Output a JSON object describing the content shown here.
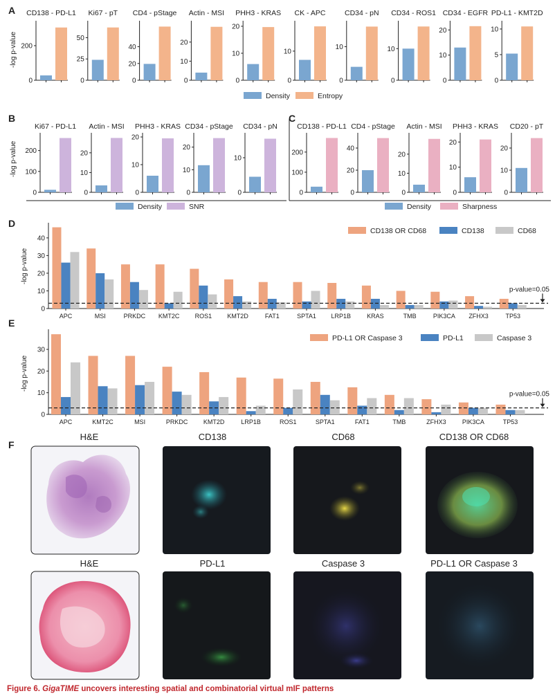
{
  "colors": {
    "density": "#7aa6d0",
    "entropy": "#f3b48b",
    "snr": "#cdb4dc",
    "sharpness": "#eab0c2",
    "or_combo": "#eea47f",
    "marker_a": "#4a83c1",
    "marker_b": "#c8c8c8",
    "axis": "#222222",
    "caption": "#c0272d"
  },
  "panels": {
    "A": "A",
    "B": "B",
    "C": "C",
    "D": "D",
    "E": "E",
    "F": "F"
  },
  "ylabel": "-log p-value",
  "threshold_label": "p-value=0.05",
  "chart_data": [
    {
      "id": "A",
      "type": "bar",
      "ylabel": "-log p-value",
      "series_names": [
        "Density",
        "Entropy"
      ],
      "subplots": [
        {
          "title": "CD138 - PD-L1",
          "ticks": [
            0,
            200
          ],
          "ylim": [
            0,
            320
          ],
          "values": [
            28,
            305
          ]
        },
        {
          "title": "Ki67 - pT",
          "ticks": [
            0,
            25,
            50
          ],
          "ylim": [
            0,
            65
          ],
          "values": [
            24,
            62
          ]
        },
        {
          "title": "CD4 - pStage",
          "ticks": [
            0,
            20,
            40
          ],
          "ylim": [
            0,
            66
          ],
          "values": [
            19.5,
            64
          ]
        },
        {
          "title": "Actin - MSI",
          "ticks": [
            0,
            10,
            20
          ],
          "ylim": [
            0,
            29
          ],
          "values": [
            4,
            28
          ]
        },
        {
          "title": "PHH3 - KRAS",
          "ticks": [
            0,
            10,
            20
          ],
          "ylim": [
            0,
            20.5
          ],
          "values": [
            6,
            19.7
          ]
        },
        {
          "title": "CK - APC",
          "ticks": [
            0,
            10
          ],
          "ylim": [
            0,
            19
          ],
          "values": [
            7,
            18.5
          ]
        },
        {
          "title": "CD34 - pN",
          "ticks": [
            0,
            10
          ],
          "ylim": [
            0,
            16.5
          ],
          "values": [
            4,
            16
          ]
        },
        {
          "title": "CD34 - ROS1",
          "ticks": [
            0,
            10
          ],
          "ylim": [
            0,
            17.5
          ],
          "values": [
            10,
            17
          ]
        },
        {
          "title": "CD34 - EGFR",
          "ticks": [
            0,
            10,
            20
          ],
          "ylim": [
            0,
            22
          ],
          "values": [
            13,
            21.5
          ]
        },
        {
          "title": "PD-L1 - KMT2D",
          "ticks": [
            0,
            5,
            10
          ],
          "ylim": [
            0,
            10.8
          ],
          "values": [
            5.2,
            10.5
          ]
        }
      ]
    },
    {
      "id": "B",
      "type": "bar",
      "ylabel": "-log p-value",
      "series_names": [
        "Density",
        "SNR"
      ],
      "subplots": [
        {
          "title": "Ki67 - PD-L1",
          "ticks": [
            0,
            100,
            200
          ],
          "ylim": [
            0,
            265
          ],
          "values": [
            12,
            260
          ]
        },
        {
          "title": "Actin - MSI",
          "ticks": [
            0,
            10,
            20
          ],
          "ylim": [
            0,
            28
          ],
          "values": [
            3.5,
            27.5
          ]
        },
        {
          "title": "PHH3 - KRAS",
          "ticks": [
            0,
            10,
            20
          ],
          "ylim": [
            0,
            20
          ],
          "values": [
            6,
            19.5
          ]
        },
        {
          "title": "CD34 - pStage",
          "ticks": [
            0,
            10,
            20
          ],
          "ylim": [
            0,
            24.5
          ],
          "values": [
            12,
            24
          ]
        },
        {
          "title": "CD34 - pN",
          "ticks": [
            0,
            10
          ],
          "ylim": [
            0,
            16
          ],
          "values": [
            4.5,
            15.5
          ]
        }
      ]
    },
    {
      "id": "C",
      "type": "bar",
      "ylabel": "",
      "series_names": [
        "Density",
        "Sharpness"
      ],
      "subplots": [
        {
          "title": "CD138 - PD-L1",
          "ticks": [
            0,
            100,
            200
          ],
          "ylim": [
            0,
            275
          ],
          "values": [
            28,
            270
          ]
        },
        {
          "title": "CD4 - pStage",
          "ticks": [
            0,
            20,
            40
          ],
          "ylim": [
            0,
            50
          ],
          "values": [
            20,
            49
          ]
        },
        {
          "title": "Actin - MSI",
          "ticks": [
            0,
            10,
            20
          ],
          "ylim": [
            0,
            29
          ],
          "values": [
            4,
            28
          ]
        },
        {
          "title": "PHH3 - KRAS",
          "ticks": [
            0,
            10,
            20
          ],
          "ylim": [
            0,
            22
          ],
          "values": [
            6,
            21
          ]
        },
        {
          "title": "CD20 - pT",
          "ticks": [
            0,
            10,
            20
          ],
          "ylim": [
            0,
            25
          ],
          "values": [
            11,
            24.5
          ]
        }
      ]
    },
    {
      "id": "D",
      "type": "bar",
      "ylabel": "-log p-value",
      "ylim": [
        0,
        47
      ],
      "ticks": [
        0,
        10,
        20,
        30,
        40
      ],
      "threshold": 3,
      "categories": [
        "APC",
        "MSI",
        "PRKDC",
        "KMT2C",
        "ROS1",
        "KMT2D",
        "FAT1",
        "SPTA1",
        "LRP1B",
        "KRAS",
        "TMB",
        "PIK3CA",
        "ZFHX3",
        "TP53"
      ],
      "series": [
        {
          "name": "CD138 OR CD68",
          "values": [
            46,
            34,
            25,
            25,
            22.5,
            16.5,
            15,
            15,
            14.5,
            13,
            10,
            9.5,
            7,
            5.5
          ]
        },
        {
          "name": "CD138",
          "values": [
            26,
            20,
            15,
            3,
            13,
            7,
            5.5,
            4,
            5.5,
            5.5,
            2,
            4,
            1.5,
            3
          ]
        },
        {
          "name": "CD68",
          "values": [
            32,
            16.5,
            10.5,
            9.5,
            8,
            4,
            3.5,
            10,
            4,
            2,
            2,
            4.5,
            1,
            2
          ]
        }
      ]
    },
    {
      "id": "E",
      "type": "bar",
      "ylabel": "-log p-value",
      "ylim": [
        0,
        38
      ],
      "ticks": [
        0,
        10,
        20,
        30
      ],
      "threshold": 3,
      "categories": [
        "APC",
        "KMT2C",
        "MSI",
        "PRKDC",
        "KMT2D",
        "LRP1B",
        "ROS1",
        "SPTA1",
        "FAT1",
        "TMB",
        "ZFHX3",
        "PIK3CA",
        "TP53"
      ],
      "series": [
        {
          "name": "PD-L1 OR Caspase 3",
          "values": [
            37,
            27,
            27,
            22,
            19.5,
            17,
            16.5,
            15,
            12.5,
            9,
            7,
            5.5,
            4.5
          ]
        },
        {
          "name": "PD-L1",
          "values": [
            8,
            13,
            13.5,
            10.5,
            6,
            1.5,
            3,
            9,
            4,
            2,
            1,
            3,
            2
          ]
        },
        {
          "name": "Caspase 3",
          "values": [
            24,
            12,
            15,
            9,
            8,
            4,
            11.5,
            6.5,
            7.5,
            7.5,
            4.5,
            3,
            2
          ]
        }
      ]
    }
  ],
  "panel_f": {
    "row1": [
      "H&E",
      "CD138",
      "CD68",
      "CD138 OR CD68"
    ],
    "row2": [
      "H&E",
      "PD-L1",
      "Caspase 3",
      "PD-L1 OR Caspase 3"
    ]
  },
  "caption": {
    "prefix": "Figure 6. ",
    "emph": "GigaTIME",
    "rest": " uncovers interesting spatial and combinatorial virtual mIF patterns"
  }
}
